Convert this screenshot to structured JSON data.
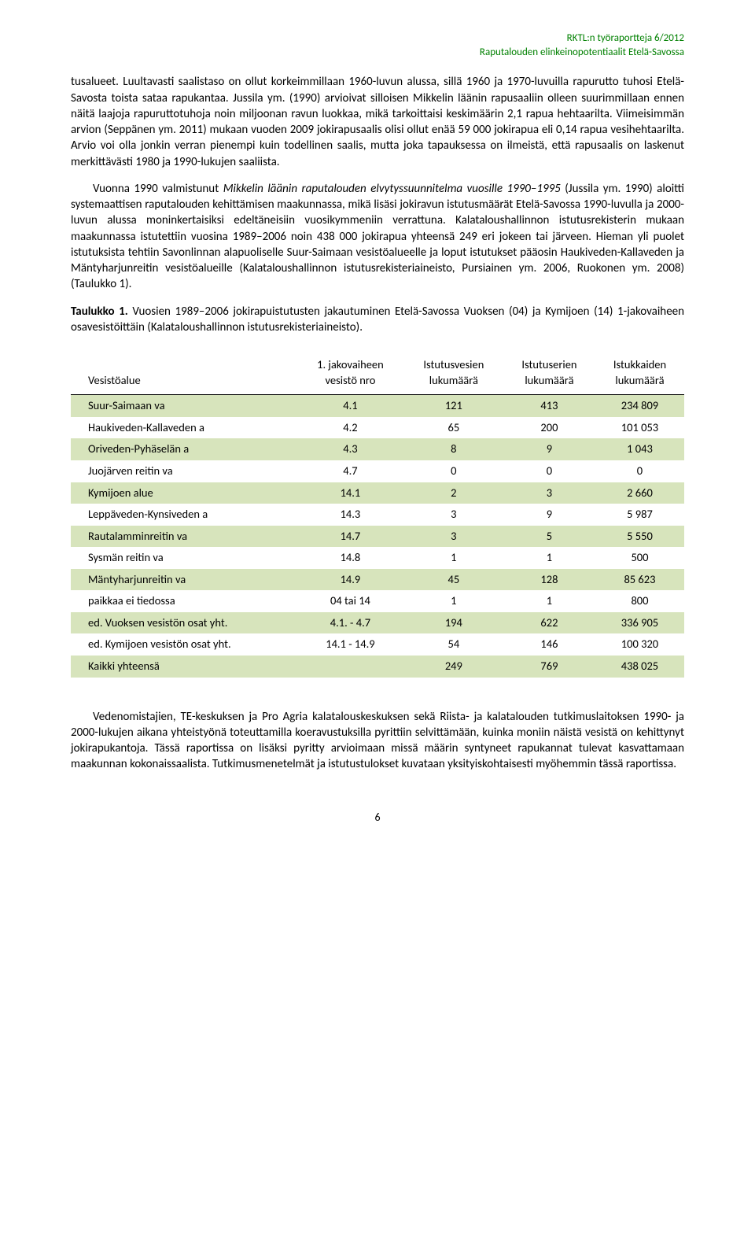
{
  "meta": {
    "line1": "RKTL:n työraportteja 6/2012",
    "line2": "Raputalouden elinkeinopotentiaalit Etelä-Savossa"
  },
  "para1": "tusalueet. Luultavasti saalistaso on ollut korkeimmillaan 1960-luvun alussa, sillä 1960 ja 1970-luvuilla rapurutto tuhosi Etelä-Savosta toista sataa rapukantaa. Jussila ym. (1990) arvioivat silloisen Mikkelin läänin rapusaaliin olleen suurimmillaan ennen näitä laajoja rapuruttotuhoja noin miljoonan ravun luokkaa, mikä tarkoittaisi keskimäärin 2,1 rapua hehtaarilta. Viimeisimmän arvion (Seppänen ym. 2011) mukaan vuoden 2009 jokirapusaalis olisi ollut enää 59 000 jokirapua eli 0,14 rapua vesihehtaa­rilta. Arvio voi olla jonkin verran pienempi kuin todellinen saalis, mutta joka tapauksessa on ilmeistä, että rapusaalis on laskenut merkittävästi 1980 ja 1990-lukujen saaliista.",
  "para2_pre": "Vuonna 1990 valmistunut ",
  "para2_italic": "Mikkelin läänin raputalouden elvytyssuunnitelma vuosille 1990–1995",
  "para2_post": " (Jussila ym. 1990) aloitti systemaattisen raputalouden kehittämisen maakunnassa, mikä lisäsi jokira­vun istutusmäärät Etelä-Savossa 1990-luvulla ja 2000- luvun alussa moninkertaisiksi edeltäneisiin vuosikymmeniin verrattuna. Kalataloushallinnon istutusrekisterin mukaan maakunnassa istutettiin vuosina 1989–2006 noin 438 000 jokirapua yhteensä 249 eri jokeen tai järveen. Hieman yli puolet istutuksista tehtiin Savonlinnan alapuoliselle Suur-Saimaan vesistöalueelle ja loput istutukset pääosin Haukiveden-Kallaveden ja Mäntyharjunreitin vesistöalueille (Kalataloushallinnon istutusrekisteriai­neisto, Pursiainen ym. 2006, Ruokonen ym. 2008) (Taulukko 1).",
  "caption_bold": "Taulukko 1.",
  "caption_rest": " Vuosien 1989–2006  jokirapuistutusten jakautuminen Etelä-Savossa Vuoksen (04) ja Ky­mijoen (14) 1-jakovaiheen osavesistöittäin (Kalataloushallinnon istutusrekisteriaineisto).",
  "table": {
    "headers": {
      "c0": "Vesistöalue",
      "c1a": "1. jakovaiheen",
      "c1b": "vesistö nro",
      "c2a": "Istutusvesien",
      "c2b": "lukumäärä",
      "c3a": "Istutuserien",
      "c3b": "lukumäärä",
      "c4a": "Istukkaiden",
      "c4b": "lukumäärä"
    },
    "rows": [
      {
        "shaded": true,
        "c0": "Suur-Saimaan va",
        "c1": "4.1",
        "c2": "121",
        "c3": "413",
        "c4": "234 809"
      },
      {
        "shaded": false,
        "c0": "Haukiveden-Kallaveden a",
        "c1": "4.2",
        "c2": "65",
        "c3": "200",
        "c4": "101 053"
      },
      {
        "shaded": true,
        "c0": "Oriveden-Pyhäselän a",
        "c1": "4.3",
        "c2": "8",
        "c3": "9",
        "c4": "1 043"
      },
      {
        "shaded": false,
        "c0": "Juojärven reitin va",
        "c1": "4.7",
        "c2": "0",
        "c3": "0",
        "c4": "0"
      },
      {
        "shaded": true,
        "c0": "Kymijoen alue",
        "c1": "14.1",
        "c2": "2",
        "c3": "3",
        "c4": "2 660"
      },
      {
        "shaded": false,
        "c0": "Leppäveden-Kynsiveden a",
        "c1": "14.3",
        "c2": "3",
        "c3": "9",
        "c4": "5 987"
      },
      {
        "shaded": true,
        "c0": "Rautalamminreitin va",
        "c1": "14.7",
        "c2": "3",
        "c3": "5",
        "c4": "5 550"
      },
      {
        "shaded": false,
        "c0": "Sysmän reitin va",
        "c1": "14.8",
        "c2": "1",
        "c3": "1",
        "c4": "500"
      },
      {
        "shaded": true,
        "c0": "Mäntyharjunreitin va",
        "c1": "14.9",
        "c2": "45",
        "c3": "128",
        "c4": "85 623"
      },
      {
        "shaded": false,
        "c0": "paikkaa ei tiedossa",
        "c1": "04 tai 14",
        "c2": "1",
        "c3": "1",
        "c4": "800"
      },
      {
        "shaded": true,
        "c0": "ed. Vuoksen vesistön osat yht.",
        "c1": "4.1. - 4.7",
        "c2": "194",
        "c3": "622",
        "c4": "336 905"
      },
      {
        "shaded": false,
        "c0": "ed. Kymijoen vesistön osat yht.",
        "c1": "14.1 - 14.9",
        "c2": "54",
        "c3": "146",
        "c4": "100 320"
      },
      {
        "shaded": true,
        "c0": "Kaikki yhteensä",
        "c1": "",
        "c2": "249",
        "c3": "769",
        "c4": "438 025"
      }
    ]
  },
  "para3": "Vedenomistajien, TE-keskuksen ja Pro Agria kalatalouskeskuksen sekä Riista- ja kalatalouden tutkimuslaitoksen 1990- ja 2000-lukujen aikana yhteistyönä toteuttamilla koeravustuksilla pyrittiin selvittämään, kuinka moniin näistä vesistä on kehittynyt jokirapukantoja. Tässä raportissa on lisäksi pyritty arvioimaan missä määrin syntyneet rapukannat tulevat kasvattamaan maakunnan kokonais­saalista. Tutkimusmenetelmät ja istutustulokset kuvataan yksityiskohtaisesti myöhemmin tässä ra­portissa.",
  "page_number": "6",
  "colors": {
    "header_text": "#008000",
    "shaded_row_bg": "#d7e4bc",
    "body_text": "#000000",
    "background": "#ffffff"
  }
}
